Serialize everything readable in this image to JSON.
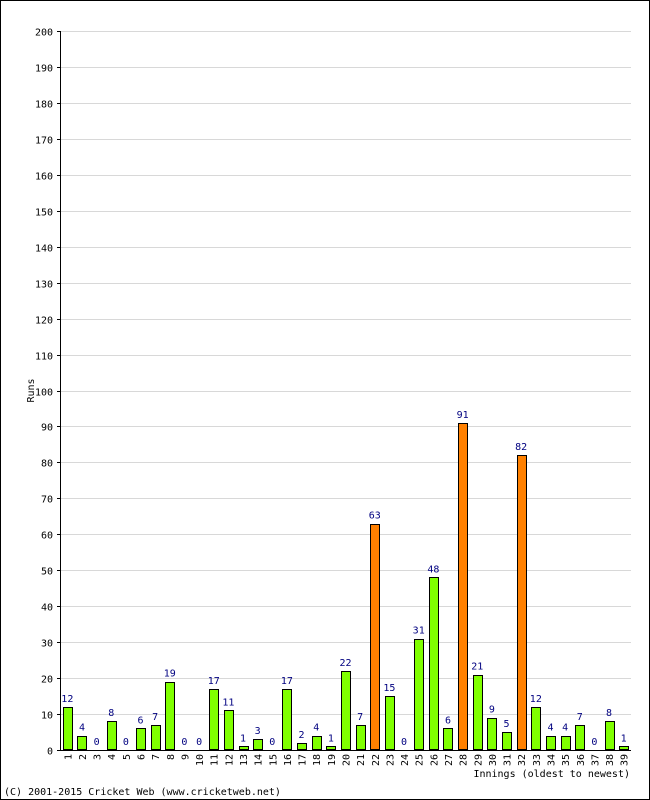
{
  "chart_data": {
    "type": "bar",
    "xlabel": "Innings (oldest to newest)",
    "ylabel": "Runs",
    "ylim": [
      0,
      200
    ],
    "yticks": [
      0,
      10,
      20,
      30,
      40,
      50,
      60,
      70,
      80,
      90,
      100,
      110,
      120,
      130,
      140,
      150,
      160,
      170,
      180,
      190,
      200
    ],
    "grid": true,
    "categories": [
      "1",
      "2",
      "3",
      "4",
      "5",
      "6",
      "7",
      "8",
      "9",
      "10",
      "11",
      "12",
      "13",
      "14",
      "15",
      "16",
      "17",
      "18",
      "19",
      "20",
      "21",
      "22",
      "23",
      "24",
      "25",
      "26",
      "27",
      "28",
      "29",
      "30",
      "31",
      "32",
      "33",
      "34",
      "35",
      "36",
      "37",
      "38",
      "39"
    ],
    "values": [
      12,
      4,
      0,
      8,
      0,
      6,
      7,
      19,
      0,
      0,
      17,
      11,
      1,
      3,
      0,
      17,
      2,
      4,
      1,
      22,
      7,
      63,
      15,
      0,
      31,
      48,
      6,
      91,
      21,
      9,
      5,
      82,
      12,
      4,
      4,
      7,
      0,
      8,
      1
    ],
    "highlight_threshold": 50,
    "colors": {
      "normal": "#80ff00",
      "highlight": "#ff8000",
      "value_label": "#000080",
      "grid": "#d8d8d8"
    }
  },
  "footer": {
    "copyright": "(C) 2001-2015 Cricket Web (www.cricketweb.net)"
  }
}
